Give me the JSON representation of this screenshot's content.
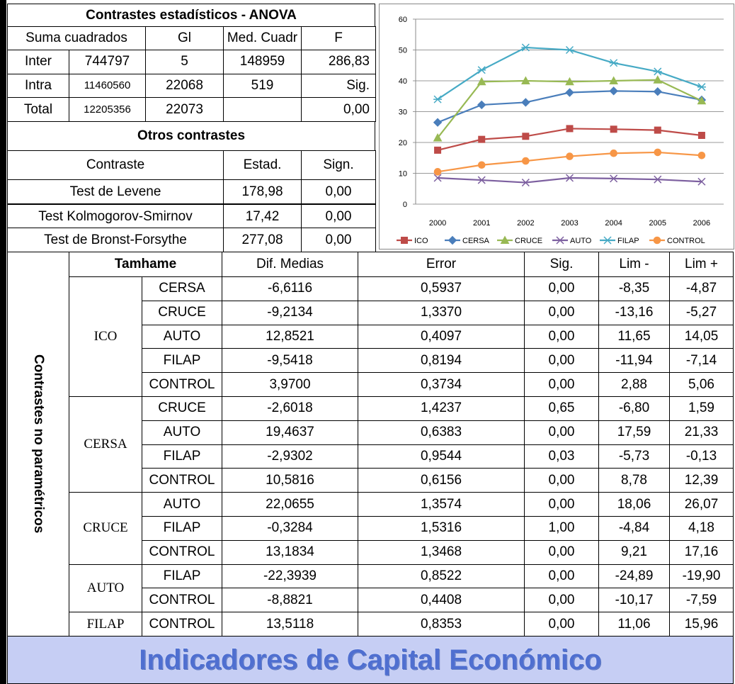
{
  "anova": {
    "title": "Contrastes estadísticos - ANOVA",
    "header": [
      "Suma cuadrados",
      "Gl",
      "Med. Cuadr",
      "F"
    ],
    "rows": [
      [
        "Inter",
        "744797",
        "5",
        "148959",
        "286,83"
      ],
      [
        "Intra",
        "11460560",
        "22068",
        "519",
        "Sig."
      ],
      [
        "Total",
        "12205356",
        "22073",
        null,
        "0,00"
      ]
    ]
  },
  "otros": {
    "title": "Otros contrastes",
    "header": [
      "Contraste",
      "Estad.",
      "Sign."
    ],
    "rows": [
      [
        "Test de Levene",
        "178,98",
        "0,00"
      ],
      [
        "Test Kolmogorov-Smirnov",
        "17,42",
        "0,00"
      ],
      [
        "Test de Bronst-Forsythe",
        "277,08",
        "0,00"
      ]
    ]
  },
  "tamhane": {
    "side_label": "Contrastes no paramétricos",
    "title": "Tamhame",
    "header": [
      "Dif. Medias",
      "Error",
      "Sig.",
      "Lim -",
      "Lim +"
    ],
    "groups": [
      {
        "name": "ICO",
        "rows": [
          [
            "CERSA",
            "-6,6116",
            "0,5937",
            "0,00",
            "-8,35",
            "-4,87"
          ],
          [
            "CRUCE",
            "-9,2134",
            "1,3370",
            "0,00",
            "-13,16",
            "-5,27"
          ],
          [
            "AUTO",
            "12,8521",
            "0,4097",
            "0,00",
            "11,65",
            "14,05"
          ],
          [
            "FILAP",
            "-9,5418",
            "0,8194",
            "0,00",
            "-11,94",
            "-7,14"
          ],
          [
            "CONTROL",
            "3,9700",
            "0,3734",
            "0,00",
            "2,88",
            "5,06"
          ]
        ]
      },
      {
        "name": "CERSA",
        "rows": [
          [
            "CRUCE",
            "-2,6018",
            "1,4237",
            "0,65",
            "-6,80",
            "1,59"
          ],
          [
            "AUTO",
            "19,4637",
            "0,6383",
            "0,00",
            "17,59",
            "21,33"
          ],
          [
            "FILAP",
            "-2,9302",
            "0,9544",
            "0,03",
            "-5,73",
            "-0,13"
          ],
          [
            "CONTROL",
            "10,5816",
            "0,6156",
            "0,00",
            "8,78",
            "12,39"
          ]
        ]
      },
      {
        "name": "CRUCE",
        "rows": [
          [
            "AUTO",
            "22,0655",
            "1,3574",
            "0,00",
            "18,06",
            "26,07"
          ],
          [
            "FILAP",
            "-0,3284",
            "1,5316",
            "1,00",
            "-4,84",
            "4,18"
          ],
          [
            "CONTROL",
            "13,1834",
            "1,3468",
            "0,00",
            "9,21",
            "17,16"
          ]
        ]
      },
      {
        "name": "AUTO",
        "rows": [
          [
            "FILAP",
            "-22,3939",
            "0,8522",
            "0,00",
            "-24,89",
            "-19,90"
          ],
          [
            "CONTROL",
            "-8,8821",
            "0,4408",
            "0,00",
            "-10,17",
            "-7,59"
          ]
        ]
      },
      {
        "name": "FILAP",
        "rows": [
          [
            "CONTROL",
            "13,5118",
            "0,8353",
            "0,00",
            "11,06",
            "15,96"
          ]
        ]
      }
    ]
  },
  "banner": "Indicadores de Capital Económico",
  "chart_data": {
    "type": "line",
    "categories": [
      "2000",
      "2001",
      "2002",
      "2003",
      "2004",
      "2005",
      "2006"
    ],
    "ylim": [
      0,
      60
    ],
    "yticks": [
      0,
      10,
      20,
      30,
      40,
      50,
      60
    ],
    "grid": true,
    "legend": "bottom",
    "series": [
      {
        "name": "ICO",
        "color": "#be4b48",
        "marker": "square",
        "values": [
          17.5,
          21,
          22,
          24.5,
          24.3,
          24,
          22.3
        ]
      },
      {
        "name": "CERSA",
        "color": "#4a7ebb",
        "marker": "diamond",
        "values": [
          26.5,
          32.2,
          33,
          36.2,
          36.7,
          36.5,
          33.8
        ]
      },
      {
        "name": "CRUCE",
        "color": "#98b954",
        "marker": "triangle",
        "values": [
          21.5,
          39.7,
          40,
          39.7,
          40,
          40.3,
          33.5
        ]
      },
      {
        "name": "AUTO",
        "color": "#7d60a0",
        "marker": "x",
        "values": [
          8.5,
          7.8,
          7,
          8.5,
          8.3,
          8,
          7.3
        ]
      },
      {
        "name": "FILAP",
        "color": "#46aac5",
        "marker": "star",
        "values": [
          34,
          43.5,
          50.8,
          50,
          45.8,
          43,
          38
        ]
      },
      {
        "name": "CONTROL",
        "color": "#f79646",
        "marker": "circle",
        "values": [
          10.5,
          12.7,
          14,
          15.5,
          16.5,
          16.8,
          15.8
        ]
      }
    ]
  }
}
